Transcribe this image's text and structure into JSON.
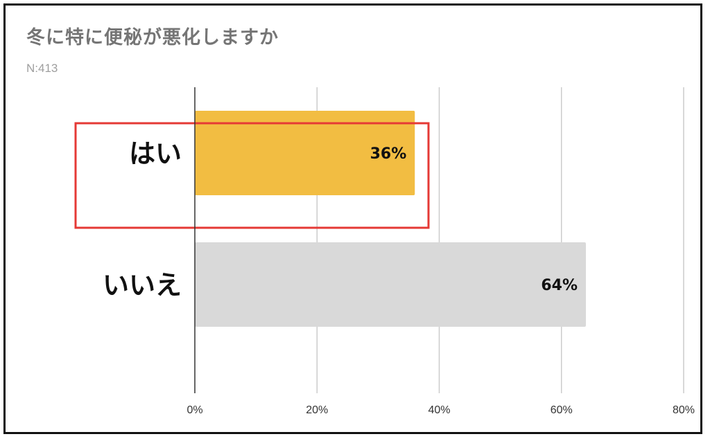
{
  "chart_data": {
    "type": "bar",
    "orientation": "horizontal",
    "title": "冬に特に便秘が悪化しますか",
    "subtitle": "N:413",
    "categories": [
      "はい",
      "いいえ"
    ],
    "values": [
      36,
      64
    ],
    "value_labels": [
      "36%",
      "64%"
    ],
    "xlim": [
      0,
      80
    ],
    "xticks": [
      0,
      20,
      40,
      60,
      80
    ],
    "xtick_labels": [
      "0%",
      "20%",
      "40%",
      "60%",
      "80%"
    ],
    "grid": true,
    "highlighted_category": "はい",
    "colors": {
      "bars": [
        "#f2bd42",
        "#d9d9d9"
      ],
      "highlight_border": "#e53935",
      "grid": "#cccccc",
      "axis": "#333333"
    }
  }
}
